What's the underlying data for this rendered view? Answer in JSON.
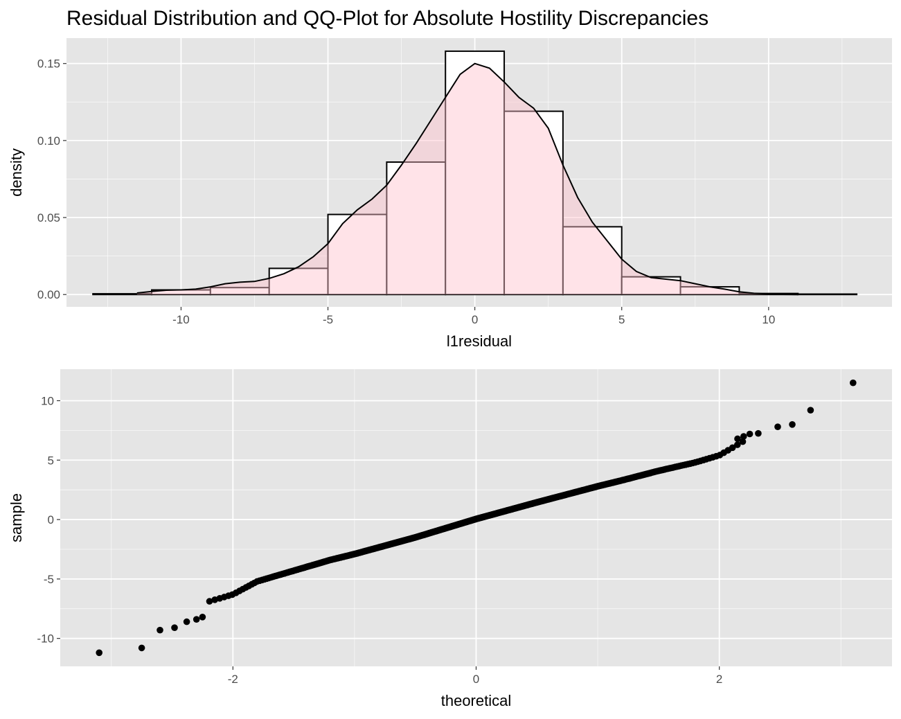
{
  "title": "Residual Distribution and QQ-Plot for Absolute Hostility Discrepancies",
  "colors": {
    "panel_bg": "#e5e5e5",
    "grid_major": "#ffffff",
    "grid_minor": "#f2f2f2",
    "bar_fill": "#ffffff",
    "bar_stroke": "#000000",
    "density_fill": "#ffc0cb",
    "density_alpha": 0.45,
    "point": "#000000",
    "tick_text": "#4d4d4d"
  },
  "chart_data": [
    {
      "type": "bar",
      "subtype": "histogram_with_density",
      "xlabel": "l1residual",
      "ylabel": "density",
      "xlim": [
        -13.9,
        14.2
      ],
      "ylim": [
        -0.008,
        0.1665
      ],
      "xticks": [
        -10,
        -5,
        0,
        5,
        10
      ],
      "xtick_labels": [
        "-10",
        "-5",
        "0",
        "5",
        "10"
      ],
      "yticks": [
        0,
        0.05,
        0.1,
        0.15
      ],
      "ytick_labels": [
        "0.00",
        "0.05",
        "0.10",
        "0.15"
      ],
      "grid": true,
      "bins": [
        {
          "x0": -13,
          "x1": -11,
          "density": 0.0005
        },
        {
          "x0": -11,
          "x1": -9,
          "density": 0.003
        },
        {
          "x0": -9,
          "x1": -7,
          "density": 0.0045
        },
        {
          "x0": -7,
          "x1": -5,
          "density": 0.017
        },
        {
          "x0": -5,
          "x1": -3,
          "density": 0.052
        },
        {
          "x0": -3,
          "x1": -1,
          "density": 0.086
        },
        {
          "x0": -1,
          "x1": 1,
          "density": 0.158
        },
        {
          "x0": 1,
          "x1": 3,
          "density": 0.119
        },
        {
          "x0": 3,
          "x1": 5,
          "density": 0.044
        },
        {
          "x0": 5,
          "x1": 7,
          "density": 0.0115
        },
        {
          "x0": 7,
          "x1": 9,
          "density": 0.005
        },
        {
          "x0": 9,
          "x1": 11,
          "density": 0.0007
        },
        {
          "x0": 11,
          "x1": 13,
          "density": 0.0003
        }
      ],
      "density_curve": {
        "x": [
          -11.5,
          -11,
          -10.5,
          -10,
          -9.5,
          -9,
          -8.5,
          -8,
          -7.5,
          -7,
          -6.5,
          -6,
          -5.5,
          -5,
          -4.5,
          -4,
          -3.5,
          -3,
          -2.5,
          -2,
          -1.5,
          -1,
          -0.5,
          0,
          0.5,
          1,
          1.5,
          2,
          2.5,
          3,
          3.5,
          4,
          4.5,
          5,
          5.5,
          6,
          6.5,
          7,
          7.5,
          8,
          8.5,
          9,
          9.5,
          10,
          10.5,
          11
        ],
        "y": [
          0.001,
          0.002,
          0.0028,
          0.003,
          0.0035,
          0.005,
          0.007,
          0.008,
          0.0085,
          0.0105,
          0.0135,
          0.018,
          0.0245,
          0.033,
          0.046,
          0.055,
          0.062,
          0.071,
          0.084,
          0.098,
          0.113,
          0.128,
          0.143,
          0.15,
          0.147,
          0.138,
          0.128,
          0.121,
          0.108,
          0.084,
          0.063,
          0.047,
          0.035,
          0.023,
          0.015,
          0.011,
          0.01,
          0.009,
          0.007,
          0.005,
          0.0035,
          0.0018,
          0.0008,
          0.0003,
          0.0001,
          0.0
        ]
      }
    },
    {
      "type": "scatter",
      "subtype": "qq_plot",
      "xlabel": "theoretical",
      "ylabel": "sample",
      "xlim": [
        -3.42,
        3.42
      ],
      "ylim": [
        -12.35,
        12.65
      ],
      "xticks": [
        -2,
        0,
        2
      ],
      "xtick_labels": [
        "-2",
        "0",
        "2"
      ],
      "yticks": [
        -10,
        -5,
        0,
        5,
        10
      ],
      "ytick_labels": [
        "-10",
        "-5",
        "0",
        "5",
        "10"
      ],
      "grid": true,
      "n_points": 600,
      "trend_theoretical": [
        -2.2,
        -2.0,
        -1.8,
        -1.5,
        -1.2,
        -1.0,
        -0.5,
        0,
        0.5,
        1.0,
        1.2,
        1.5,
        1.8,
        2.0,
        2.2
      ],
      "trend_sample": [
        -6.9,
        -6.3,
        -5.2,
        -4.3,
        -3.4,
        -2.9,
        -1.5,
        0.05,
        1.45,
        2.8,
        3.3,
        4.1,
        4.8,
        5.4,
        6.6
      ],
      "tail_points": {
        "x": [
          -3.1,
          -2.75,
          -2.6,
          -2.48,
          -2.38,
          -2.3,
          -2.25,
          2.15,
          2.2,
          2.25,
          2.32,
          2.48,
          2.6,
          2.75,
          3.1
        ],
        "y": [
          -11.2,
          -10.8,
          -9.3,
          -9.1,
          -8.6,
          -8.4,
          -8.2,
          6.8,
          7.0,
          7.2,
          7.25,
          7.8,
          8.0,
          9.2,
          11.5
        ]
      }
    }
  ]
}
